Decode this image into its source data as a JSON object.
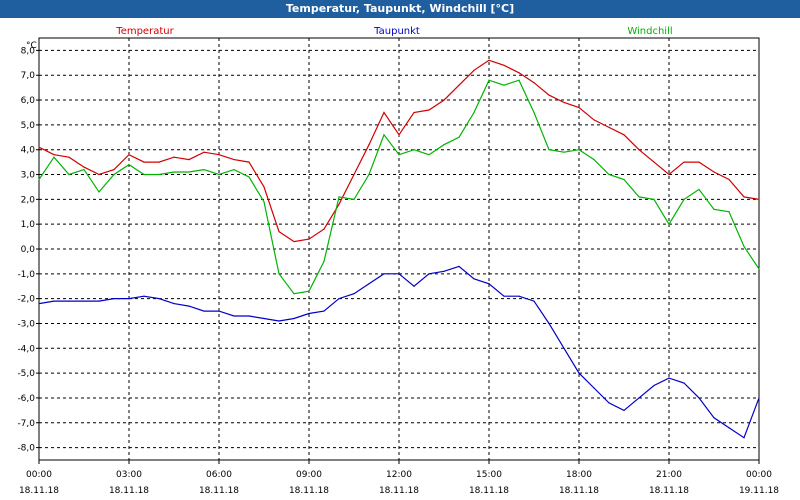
{
  "window": {
    "title": "Temperatur, Taupunkt, Windchill [°C]"
  },
  "chart_data": {
    "type": "line",
    "title": "Temperatur, Taupunkt, Windchill [°C]",
    "ylabel": "°C",
    "ylim": [
      -8.5,
      8.5
    ],
    "y_ticks": [
      "-8,0",
      "-7,0",
      "-6,0",
      "-5,0",
      "-4,0",
      "-3,0",
      "-2,0",
      "-1,0",
      "0,0",
      "1,0",
      "2,0",
      "3,0",
      "4,0",
      "5,0",
      "6,0",
      "7,0",
      "8,0"
    ],
    "y_tick_values": [
      -8,
      -7,
      -6,
      -5,
      -4,
      -3,
      -2,
      -1,
      0,
      1,
      2,
      3,
      4,
      5,
      6,
      7,
      8
    ],
    "x_tick_times": [
      "00:00",
      "03:00",
      "06:00",
      "09:00",
      "12:00",
      "15:00",
      "18:00",
      "21:00",
      "00:00"
    ],
    "x_tick_dates": [
      "18.11.18",
      "18.11.18",
      "18.11.18",
      "18.11.18",
      "18.11.18",
      "18.11.18",
      "18.11.18",
      "18.11.18",
      "19.11.18"
    ],
    "xlim_hours": [
      0,
      24
    ],
    "grid": true,
    "legend_placement": "top",
    "series": [
      {
        "name": "Temperatur",
        "color": "#d40000",
        "x": [
          0,
          0.5,
          1,
          1.5,
          2,
          2.5,
          3,
          3.5,
          4,
          4.5,
          5,
          5.5,
          6,
          6.5,
          7,
          7.5,
          8,
          8.5,
          9,
          9.5,
          10,
          10.5,
          11,
          11.5,
          12,
          12.5,
          13,
          13.5,
          14,
          14.5,
          15,
          15.5,
          16,
          16.5,
          17,
          17.5,
          18,
          18.5,
          19,
          19.5,
          20,
          20.5,
          21,
          21.5,
          22,
          22.5,
          23,
          23.5,
          24
        ],
        "values": [
          4.1,
          3.8,
          3.7,
          3.3,
          3.0,
          3.2,
          3.8,
          3.5,
          3.5,
          3.7,
          3.6,
          3.9,
          3.8,
          3.6,
          3.5,
          2.5,
          0.7,
          0.3,
          0.4,
          0.8,
          1.8,
          3.0,
          4.2,
          5.5,
          4.6,
          5.5,
          5.6,
          6.0,
          6.6,
          7.2,
          7.6,
          7.4,
          7.1,
          6.7,
          6.2,
          5.9,
          5.7,
          5.2,
          4.9,
          4.6,
          4.0,
          3.5,
          3.0,
          3.5,
          3.5,
          3.1,
          2.8,
          2.1,
          2.0
        ]
      },
      {
        "name": "Taupunkt",
        "color": "#0000c8",
        "x": [
          0,
          0.5,
          1,
          1.5,
          2,
          2.5,
          3,
          3.5,
          4,
          4.5,
          5,
          5.5,
          6,
          6.5,
          7,
          7.5,
          8,
          8.5,
          9,
          9.5,
          10,
          10.5,
          11,
          11.5,
          12,
          12.5,
          13,
          13.5,
          14,
          14.5,
          15,
          15.5,
          16,
          16.5,
          17,
          17.5,
          18,
          18.5,
          19,
          19.5,
          20,
          20.5,
          21,
          21.5,
          22,
          22.5,
          23,
          23.5,
          24
        ],
        "values": [
          -2.2,
          -2.1,
          -2.1,
          -2.1,
          -2.1,
          -2.0,
          -2.0,
          -1.9,
          -2.0,
          -2.2,
          -2.3,
          -2.5,
          -2.5,
          -2.7,
          -2.7,
          -2.8,
          -2.9,
          -2.8,
          -2.6,
          -2.5,
          -2.0,
          -1.8,
          -1.4,
          -1.0,
          -1.0,
          -1.5,
          -1.0,
          -0.9,
          -0.7,
          -1.2,
          -1.4,
          -1.9,
          -1.9,
          -2.1,
          -3.0,
          -4.0,
          -5.0,
          -5.6,
          -6.2,
          -6.5,
          -6.0,
          -5.5,
          -5.2,
          -5.4,
          -6.0,
          -6.8,
          -7.2,
          -7.6,
          -6.0
        ]
      },
      {
        "name": "Windchill",
        "color": "#00b400",
        "x": [
          0,
          0.5,
          1,
          1.5,
          2,
          2.5,
          3,
          3.5,
          4,
          4.5,
          5,
          5.5,
          6,
          6.5,
          7,
          7.5,
          8,
          8.5,
          9,
          9.5,
          10,
          10.5,
          11,
          11.5,
          12,
          12.5,
          13,
          13.5,
          14,
          14.5,
          15,
          15.5,
          16,
          16.5,
          17,
          17.5,
          18,
          18.5,
          19,
          19.5,
          20,
          20.5,
          21,
          21.5,
          22,
          22.5,
          23,
          23.5,
          24
        ],
        "values": [
          2.8,
          3.7,
          3.0,
          3.2,
          2.3,
          3.0,
          3.4,
          3.0,
          3.0,
          3.1,
          3.1,
          3.2,
          3.0,
          3.2,
          2.9,
          1.9,
          -1.0,
          -1.8,
          -1.7,
          -0.5,
          2.1,
          2.0,
          3.0,
          4.6,
          3.8,
          4.0,
          3.8,
          4.2,
          4.5,
          5.5,
          6.8,
          6.6,
          6.8,
          5.5,
          4.0,
          3.9,
          4.0,
          3.6,
          3.0,
          2.8,
          2.1,
          2.0,
          1.0,
          2.0,
          2.4,
          1.6,
          1.5,
          0.1,
          -0.8
        ]
      }
    ]
  }
}
